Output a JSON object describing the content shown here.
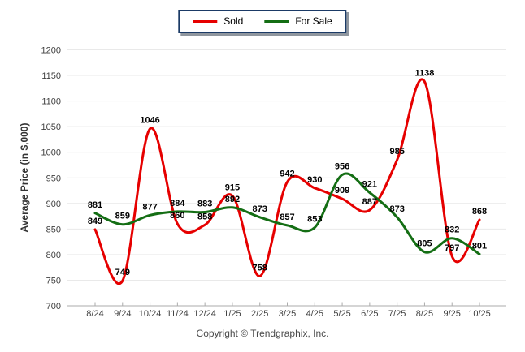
{
  "legend": {
    "items": [
      {
        "label": "Sold",
        "color": "#e60000"
      },
      {
        "label": "For Sale",
        "color": "#146e14"
      }
    ]
  },
  "footer": {
    "copyright": "Copyright © Trendgraphix, Inc."
  },
  "chart_data": {
    "type": "line",
    "x": [
      "8/24",
      "9/24",
      "10/24",
      "11/24",
      "12/24",
      "1/25",
      "2/25",
      "3/25",
      "4/25",
      "5/25",
      "6/25",
      "7/25",
      "8/25",
      "9/25",
      "10/25"
    ],
    "series": [
      {
        "name": "Sold",
        "color": "#e60000",
        "values": [
          849,
          749,
          1046,
          860,
          858,
          915,
          758,
          942,
          930,
          909,
          887,
          985,
          1138,
          797,
          868
        ]
      },
      {
        "name": "For Sale",
        "color": "#146e14",
        "values": [
          881,
          859,
          877,
          884,
          883,
          892,
          873,
          857,
          853,
          956,
          921,
          873,
          805,
          832,
          801
        ]
      }
    ],
    "title": "",
    "xlabel": "",
    "ylabel": "Average Price (in $,000)",
    "ylim": [
      700,
      1200
    ],
    "y_ticks": [
      700,
      750,
      800,
      850,
      900,
      950,
      1000,
      1050,
      1100,
      1150,
      1200
    ],
    "grid": "horizontal",
    "legend_position": "top-center",
    "smooth": true,
    "colors": {
      "grid_line": "#e9e9e9",
      "axis_line": "#ababab",
      "tick_label": "#404040",
      "data_label": "#000000",
      "legend_border": "#1b3a66"
    }
  }
}
